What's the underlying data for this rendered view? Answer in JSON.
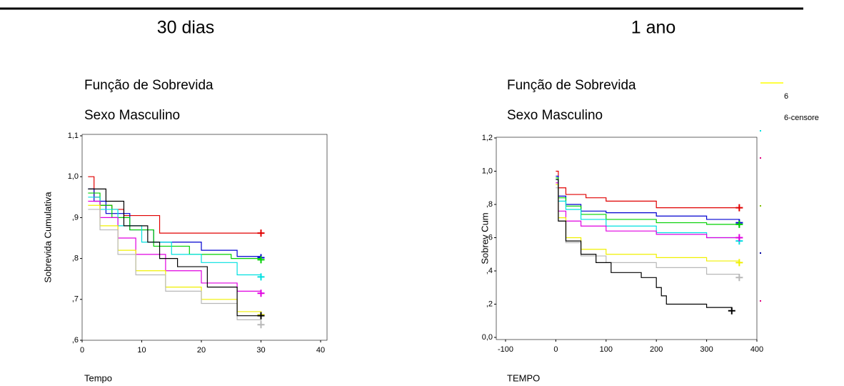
{
  "chart_data": [
    {
      "type": "line",
      "step": true,
      "header": "30 dias",
      "title": "Função de Sobrevida",
      "subtitle": "Sexo Masculino",
      "xlabel": "Tempo",
      "ylabel": "Sobrevida Cumulativa",
      "xlim": [
        0,
        40
      ],
      "xticks": [
        0,
        10,
        20,
        30,
        40
      ],
      "ylim": [
        0.6,
        1.1
      ],
      "yticks": [
        {
          "value": 0.6,
          "label": ",6"
        },
        {
          "value": 0.7,
          "label": ",7"
        },
        {
          "value": 0.8,
          "label": ",8"
        },
        {
          "value": 0.9,
          "label": ",9"
        },
        {
          "value": 1.0,
          "label": "1,0"
        },
        {
          "value": 1.1,
          "label": "1,1"
        }
      ],
      "series": [
        {
          "color": "#e00000",
          "x": [
            1,
            2,
            3,
            5,
            7,
            13,
            30
          ],
          "values": [
            1.0,
            0.95,
            0.93,
            0.92,
            0.905,
            0.862,
            0.862
          ]
        },
        {
          "color": "#0000d0",
          "x": [
            1,
            2,
            4,
            8,
            12,
            20,
            26,
            30
          ],
          "values": [
            0.97,
            0.94,
            0.91,
            0.87,
            0.84,
            0.82,
            0.805,
            0.802
          ]
        },
        {
          "color": "#00d000",
          "x": [
            1,
            3,
            5,
            8,
            12,
            18,
            25,
            30
          ],
          "values": [
            0.96,
            0.93,
            0.9,
            0.87,
            0.83,
            0.81,
            0.8,
            0.797
          ]
        },
        {
          "color": "#00e0e0",
          "x": [
            1,
            3,
            6,
            10,
            15,
            20,
            26,
            30
          ],
          "values": [
            0.95,
            0.92,
            0.88,
            0.84,
            0.81,
            0.79,
            0.76,
            0.755
          ]
        },
        {
          "color": "#e000e0",
          "x": [
            1,
            3,
            6,
            9,
            14,
            20,
            26,
            30
          ],
          "values": [
            0.94,
            0.9,
            0.85,
            0.81,
            0.77,
            0.74,
            0.72,
            0.715
          ]
        },
        {
          "color": "#f0f000",
          "x": [
            1,
            3,
            6,
            9,
            14,
            20,
            26,
            30
          ],
          "values": [
            0.93,
            0.88,
            0.82,
            0.77,
            0.73,
            0.7,
            0.67,
            0.662
          ]
        },
        {
          "color": "#b8b8b8",
          "x": [
            1,
            3,
            6,
            9,
            14,
            20,
            26,
            30
          ],
          "values": [
            0.92,
            0.87,
            0.81,
            0.76,
            0.72,
            0.69,
            0.65,
            0.638
          ]
        },
        {
          "color": "#000000",
          "x": [
            1,
            2,
            4,
            7,
            11,
            13,
            16,
            21,
            24,
            26,
            30
          ],
          "values": [
            0.97,
            0.97,
            0.94,
            0.88,
            0.84,
            0.8,
            0.78,
            0.73,
            0.73,
            0.66,
            0.66
          ]
        }
      ]
    },
    {
      "type": "line",
      "step": true,
      "header": "1 ano",
      "title": "Função de Sobrevida",
      "subtitle": "Sexo Masculino",
      "xlabel": "TEMPO",
      "ylabel": "Sobrev Cum",
      "xlim": [
        -100,
        400
      ],
      "xticks": [
        -100,
        0,
        100,
        200,
        300,
        400
      ],
      "ylim": [
        0,
        1.2
      ],
      "yticks": [
        {
          "value": 0,
          "label": "0,0"
        },
        {
          "value": 0.2,
          "label": ",2"
        },
        {
          "value": 0.4,
          "label": ",4"
        },
        {
          "value": 0.6,
          "label": ",6"
        },
        {
          "value": 0.8,
          "label": ",8"
        },
        {
          "value": 1.0,
          "label": "1,0"
        },
        {
          "value": 1.2,
          "label": "1,2"
        }
      ],
      "series": [
        {
          "color": "#e00000",
          "x": [
            0,
            5,
            20,
            60,
            100,
            200,
            365
          ],
          "values": [
            1.0,
            0.9,
            0.86,
            0.84,
            0.82,
            0.78,
            0.78
          ]
        },
        {
          "color": "#0000d0",
          "x": [
            0,
            5,
            20,
            50,
            100,
            200,
            300,
            365
          ],
          "values": [
            0.97,
            0.85,
            0.8,
            0.76,
            0.75,
            0.73,
            0.71,
            0.69
          ]
        },
        {
          "color": "#00d000",
          "x": [
            0,
            5,
            20,
            50,
            100,
            200,
            300,
            365
          ],
          "values": [
            0.96,
            0.84,
            0.79,
            0.74,
            0.71,
            0.69,
            0.68,
            0.68
          ]
        },
        {
          "color": "#00e0e0",
          "x": [
            0,
            5,
            20,
            50,
            100,
            200,
            300,
            365
          ],
          "values": [
            0.95,
            0.82,
            0.77,
            0.71,
            0.67,
            0.63,
            0.6,
            0.58
          ]
        },
        {
          "color": "#e000e0",
          "x": [
            0,
            5,
            20,
            50,
            100,
            200,
            300,
            365
          ],
          "values": [
            0.93,
            0.76,
            0.7,
            0.67,
            0.64,
            0.62,
            0.6,
            0.6
          ]
        },
        {
          "color": "#f0f000",
          "x": [
            0,
            5,
            20,
            50,
            100,
            200,
            300,
            365
          ],
          "values": [
            0.92,
            0.72,
            0.6,
            0.53,
            0.5,
            0.48,
            0.46,
            0.45
          ]
        },
        {
          "color": "#b8b8b8",
          "x": [
            0,
            5,
            20,
            50,
            100,
            200,
            300,
            365
          ],
          "values": [
            0.9,
            0.7,
            0.57,
            0.49,
            0.45,
            0.42,
            0.38,
            0.36
          ]
        },
        {
          "color": "#000000",
          "x": [
            0,
            5,
            20,
            50,
            80,
            110,
            170,
            200,
            210,
            220,
            300,
            350
          ],
          "values": [
            0.95,
            0.7,
            0.58,
            0.5,
            0.45,
            0.39,
            0.36,
            0.3,
            0.25,
            0.2,
            0.18,
            0.16
          ]
        }
      ],
      "legend": {
        "entries": [
          "6",
          "6-censore"
        ],
        "color": "#ffff00",
        "marker_colors": [
          "#00e0e0",
          "#e00080",
          "#80c000",
          "#0000a0",
          "#e00080"
        ]
      }
    }
  ]
}
